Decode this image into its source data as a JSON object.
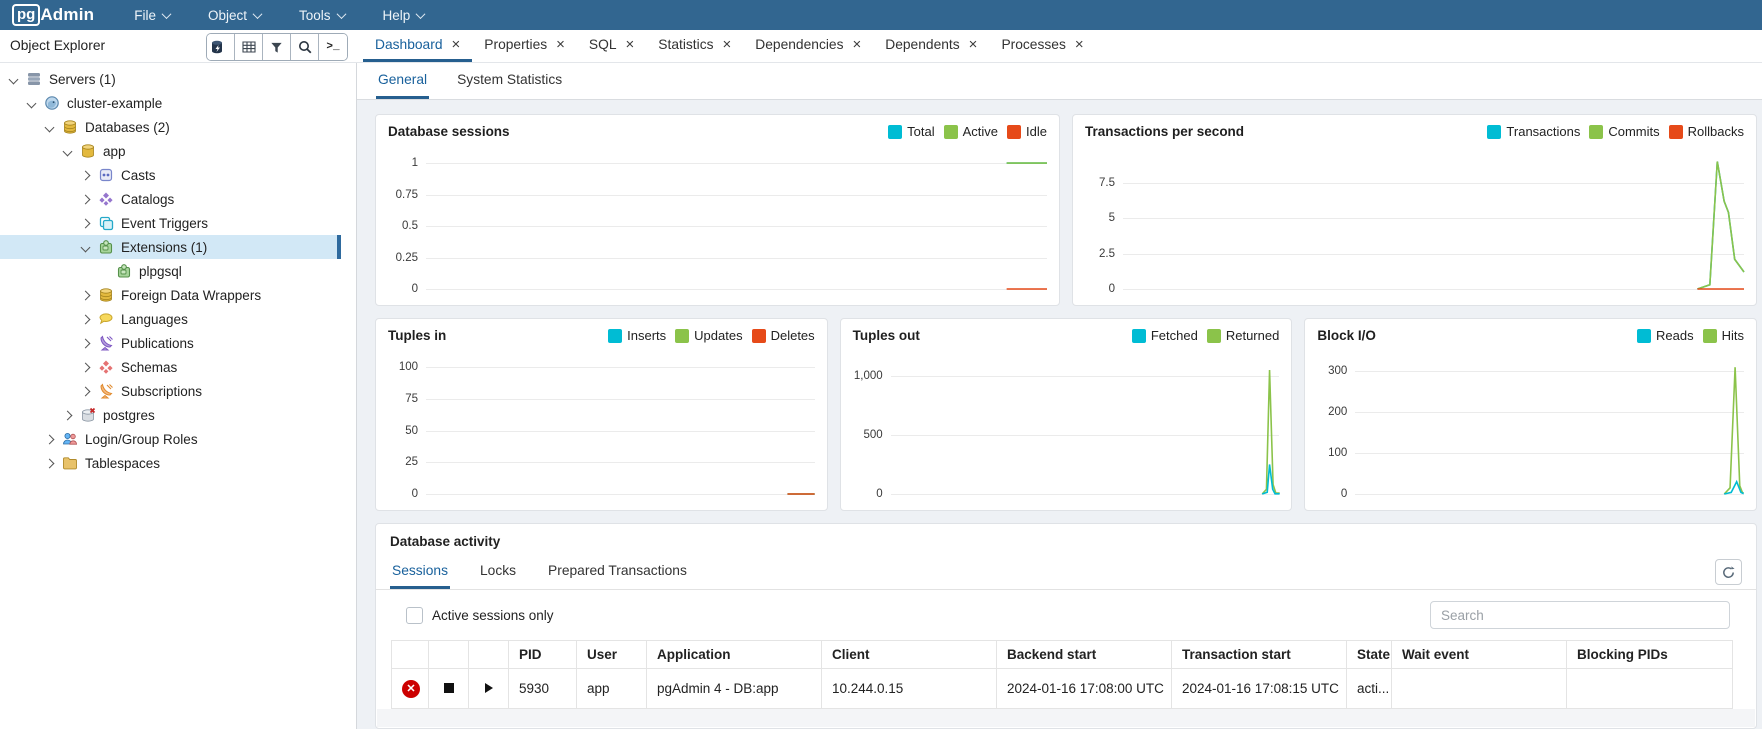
{
  "app": {
    "logo_pg": "pg",
    "logo_admin": "Admin"
  },
  "menubar": {
    "items": [
      {
        "label": "File"
      },
      {
        "label": "Object"
      },
      {
        "label": "Tools"
      },
      {
        "label": "Help"
      }
    ]
  },
  "explorer": {
    "title": "Object Explorer"
  },
  "tabs": [
    {
      "label": "Dashboard"
    },
    {
      "label": "Properties"
    },
    {
      "label": "SQL"
    },
    {
      "label": "Statistics"
    },
    {
      "label": "Dependencies"
    },
    {
      "label": "Dependents"
    },
    {
      "label": "Processes"
    }
  ],
  "subtabs": [
    {
      "label": "General"
    },
    {
      "label": "System Statistics"
    }
  ],
  "sidebar": {
    "items": [
      {
        "label": "Servers (1)",
        "level": 0,
        "expanded": true,
        "icon": "server-icon"
      },
      {
        "label": "cluster-example",
        "level": 1,
        "expanded": true,
        "icon": "postgres-server-icon"
      },
      {
        "label": "Databases (2)",
        "level": 2,
        "expanded": true,
        "icon": "databases-icon"
      },
      {
        "label": "app",
        "level": 3,
        "expanded": true,
        "icon": "database-icon"
      },
      {
        "label": "Casts",
        "level": 4,
        "expanded": false,
        "icon": "casts-icon"
      },
      {
        "label": "Catalogs",
        "level": 4,
        "expanded": false,
        "icon": "catalogs-icon"
      },
      {
        "label": "Event Triggers",
        "level": 4,
        "expanded": false,
        "icon": "event-triggers-icon"
      },
      {
        "label": "Extensions (1)",
        "level": 4,
        "expanded": true,
        "selected": true,
        "icon": "extensions-icon"
      },
      {
        "label": "plpgsql",
        "level": 5,
        "leaf": true,
        "icon": "extension-icon"
      },
      {
        "label": "Foreign Data Wrappers",
        "level": 4,
        "expanded": false,
        "icon": "foreign-data-wrappers-icon"
      },
      {
        "label": "Languages",
        "level": 4,
        "expanded": false,
        "icon": "languages-icon"
      },
      {
        "label": "Publications",
        "level": 4,
        "expanded": false,
        "icon": "publications-icon"
      },
      {
        "label": "Schemas",
        "level": 4,
        "expanded": false,
        "icon": "schemas-icon"
      },
      {
        "label": "Subscriptions",
        "level": 4,
        "expanded": false,
        "icon": "subscriptions-icon"
      },
      {
        "label": "postgres",
        "level": 3,
        "expanded": false,
        "icon": "database-disconnected-icon"
      },
      {
        "label": "Login/Group Roles",
        "level": 2,
        "expanded": false,
        "icon": "login-group-roles-icon"
      },
      {
        "label": "Tablespaces",
        "level": 2,
        "expanded": false,
        "icon": "tablespaces-icon"
      }
    ]
  },
  "chart_data": [
    {
      "type": "line",
      "title": "Database sessions",
      "ylim": [
        0,
        1.08
      ],
      "ymax": 1.08,
      "grid": true,
      "legend_position": "top-right",
      "yticks": [
        {
          "v": 1,
          "label": "1"
        },
        {
          "v": 0.75,
          "label": "0.75"
        },
        {
          "v": 0.5,
          "label": "0.5"
        },
        {
          "v": 0.25,
          "label": "0.25"
        },
        {
          "v": 0,
          "label": "0"
        }
      ],
      "series": [
        {
          "name": "Total",
          "color": "#00BCD4",
          "points": [
            [
              0.935,
              1
            ],
            [
              1,
              1
            ]
          ]
        },
        {
          "name": "Active",
          "color": "#8BC34A",
          "points": [
            [
              0.935,
              1
            ],
            [
              1,
              1
            ]
          ]
        },
        {
          "name": "Idle",
          "color": "#E64A19",
          "points": [
            [
              0.935,
              0
            ],
            [
              1,
              0
            ]
          ]
        }
      ]
    },
    {
      "type": "line",
      "title": "Transactions per second",
      "ylim": [
        0,
        9.6
      ],
      "ymax": 9.6,
      "grid": true,
      "legend_position": "top-right",
      "yticks": [
        {
          "v": 7.5,
          "label": "7.5"
        },
        {
          "v": 5,
          "label": "5"
        },
        {
          "v": 2.5,
          "label": "2.5"
        },
        {
          "v": 0,
          "label": "0"
        }
      ],
      "series": [
        {
          "name": "Transactions",
          "color": "#00BCD4",
          "points": [
            [
              0.925,
              0
            ],
            [
              0.945,
              0.3
            ],
            [
              0.957,
              9.0
            ],
            [
              0.968,
              6.2
            ],
            [
              0.975,
              5.4
            ],
            [
              0.985,
              2.1
            ],
            [
              1,
              1.2
            ]
          ]
        },
        {
          "name": "Commits",
          "color": "#8BC34A",
          "points": [
            [
              0.925,
              0
            ],
            [
              0.945,
              0.3
            ],
            [
              0.957,
              9.0
            ],
            [
              0.968,
              6.2
            ],
            [
              0.975,
              5.4
            ],
            [
              0.985,
              2.1
            ],
            [
              1,
              1.2
            ]
          ]
        },
        {
          "name": "Rollbacks",
          "color": "#E64A19",
          "points": [
            [
              0.925,
              0
            ],
            [
              1,
              0
            ]
          ]
        }
      ]
    },
    {
      "type": "line",
      "title": "Tuples in",
      "ylim": [
        0,
        108
      ],
      "ymax": 108,
      "grid": true,
      "legend_position": "top-right",
      "yticks": [
        {
          "v": 100,
          "label": "100"
        },
        {
          "v": 75,
          "label": "75"
        },
        {
          "v": 50,
          "label": "50"
        },
        {
          "v": 25,
          "label": "25"
        },
        {
          "v": 0,
          "label": "0"
        }
      ],
      "series": [
        {
          "name": "Inserts",
          "color": "#00BCD4",
          "points": [
            [
              0.93,
              0
            ],
            [
              1,
              0
            ]
          ]
        },
        {
          "name": "Updates",
          "color": "#8BC34A",
          "points": [
            [
              0.93,
              0
            ],
            [
              1,
              0
            ]
          ]
        },
        {
          "name": "Deletes",
          "color": "#E64A19",
          "points": [
            [
              0.93,
              0
            ],
            [
              1,
              0
            ]
          ]
        }
      ]
    },
    {
      "type": "line",
      "title": "Tuples out",
      "ylim": [
        0,
        1160
      ],
      "ymax": 1160,
      "grid": true,
      "legend_position": "top-right",
      "yticks": [
        {
          "v": 1000,
          "label": "1,000"
        },
        {
          "v": 500,
          "label": "500"
        },
        {
          "v": 0,
          "label": "0"
        }
      ],
      "series": [
        {
          "name": "Fetched",
          "color": "#00BCD4",
          "z": 2,
          "points": [
            [
              0.955,
              0
            ],
            [
              0.968,
              15
            ],
            [
              0.974,
              250
            ],
            [
              0.982,
              40
            ],
            [
              0.988,
              2
            ],
            [
              1,
              2
            ]
          ]
        },
        {
          "name": "Returned",
          "color": "#8BC34A",
          "z": 1,
          "points": [
            [
              0.955,
              0
            ],
            [
              0.966,
              40
            ],
            [
              0.974,
              1050
            ],
            [
              0.983,
              80
            ],
            [
              0.99,
              8
            ],
            [
              1,
              8
            ]
          ]
        }
      ]
    },
    {
      "type": "line",
      "title": "Block I/O",
      "ylim": [
        0,
        335
      ],
      "ymax": 335,
      "grid": true,
      "legend_position": "top-right",
      "yticks": [
        {
          "v": 300,
          "label": "300"
        },
        {
          "v": 200,
          "label": "200"
        },
        {
          "v": 100,
          "label": "100"
        },
        {
          "v": 0,
          "label": "0"
        }
      ],
      "series": [
        {
          "name": "Reads",
          "color": "#00BCD4",
          "z": 2,
          "points": [
            [
              0.95,
              0
            ],
            [
              0.968,
              4
            ],
            [
              0.982,
              30
            ],
            [
              0.993,
              4
            ],
            [
              1,
              1
            ]
          ]
        },
        {
          "name": "Hits",
          "color": "#8BC34A",
          "z": 1,
          "points": [
            [
              0.95,
              0
            ],
            [
              0.965,
              15
            ],
            [
              0.978,
              310
            ],
            [
              0.99,
              20
            ],
            [
              0.997,
              3
            ],
            [
              1,
              3
            ]
          ]
        }
      ]
    }
  ],
  "activity": {
    "title": "Database activity",
    "tabs": [
      {
        "label": "Sessions"
      },
      {
        "label": "Locks"
      },
      {
        "label": "Prepared Transactions"
      }
    ],
    "active_tab": "Sessions",
    "filter_label": "Active sessions only",
    "search_placeholder": "Search",
    "refresh_icon": "refresh-icon",
    "row_icons": [
      "terminate-session-icon",
      "cancel-query-icon",
      "expand-row-icon"
    ]
  },
  "table": {
    "columns": [
      "",
      "",
      "",
      "PID",
      "User",
      "Application",
      "Client",
      "Backend start",
      "Transaction start",
      "State",
      "Wait event",
      "Blocking PIDs"
    ],
    "rows": [
      {
        "pid": "5930",
        "user": "app",
        "application": "pgAdmin 4 - DB:app",
        "client": "10.244.0.15",
        "backend_start": "2024-01-16 17:08:00 UTC",
        "transaction_start": "2024-01-16 17:08:15 UTC",
        "state": "acti...",
        "wait_event": "",
        "blocking_pids": ""
      }
    ]
  }
}
